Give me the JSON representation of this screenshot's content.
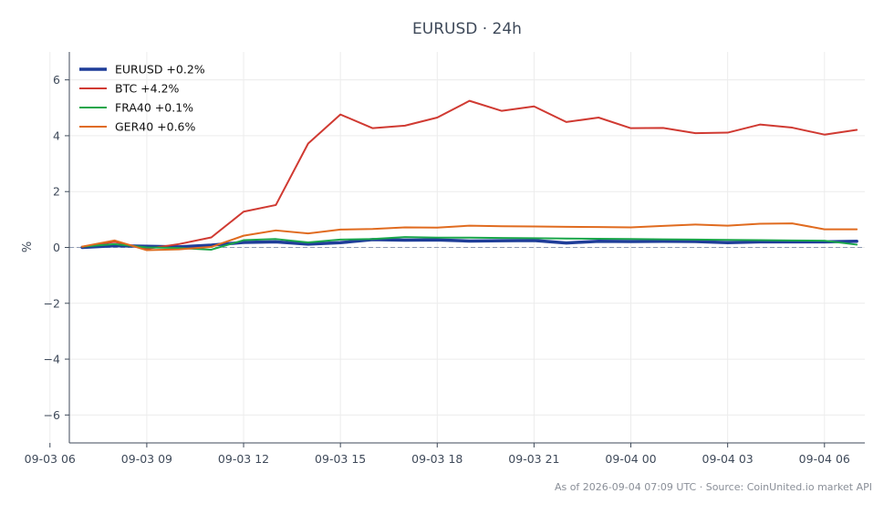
{
  "chart_data": {
    "type": "line",
    "title": "EURUSD · 24h",
    "ylabel": "%",
    "xlabel": "",
    "xlim": [
      6.6,
      31.25
    ],
    "ylim": [
      -7,
      7
    ],
    "x_tick_values": [
      6,
      9,
      12,
      15,
      18,
      21,
      24,
      27,
      30
    ],
    "x_tick_labels": [
      "09-03 06",
      "09-03 09",
      "09-03 12",
      "09-03 15",
      "09-03 18",
      "09-03 21",
      "09-04 00",
      "09-04 03",
      "09-04 06"
    ],
    "y_ticks": [
      -6,
      -4,
      -2,
      0,
      2,
      4,
      6
    ],
    "y_tick_labels": [
      "−6",
      "−4",
      "−2",
      "0",
      "2",
      "4",
      "6"
    ],
    "x": [
      7,
      8,
      9,
      10,
      11,
      12,
      13,
      14,
      15,
      16,
      17,
      18,
      19,
      20,
      21,
      22,
      23,
      24,
      25,
      26,
      27,
      28,
      29,
      30,
      31
    ],
    "series": [
      {
        "name": "EURUSD +0.2%",
        "color": "#1f3d99",
        "width": 3.5,
        "values": [
          0.0,
          0.06,
          0.04,
          0.02,
          0.08,
          0.18,
          0.2,
          0.12,
          0.17,
          0.28,
          0.26,
          0.27,
          0.23,
          0.24,
          0.25,
          0.16,
          0.22,
          0.21,
          0.22,
          0.21,
          0.17,
          0.2,
          0.2,
          0.2,
          0.22
        ]
      },
      {
        "name": "BTC +4.2%",
        "color": "#d03a32",
        "width": 2,
        "values": [
          0.02,
          0.2,
          -0.05,
          0.12,
          0.36,
          1.28,
          1.52,
          3.72,
          4.76,
          4.27,
          4.36,
          4.65,
          5.25,
          4.89,
          5.05,
          4.49,
          4.65,
          4.27,
          4.28,
          4.09,
          4.11,
          4.4,
          4.29,
          4.04,
          4.21
        ]
      },
      {
        "name": "FRA40 +0.1%",
        "color": "#1aa64a",
        "width": 2,
        "values": [
          0.03,
          0.12,
          0.0,
          -0.02,
          -0.08,
          0.26,
          0.3,
          0.18,
          0.28,
          0.3,
          0.37,
          0.35,
          0.35,
          0.34,
          0.33,
          0.32,
          0.31,
          0.3,
          0.29,
          0.28,
          0.27,
          0.26,
          0.25,
          0.24,
          0.1
        ]
      },
      {
        "name": "GER40 +0.6%",
        "color": "#e06b1f",
        "width": 2,
        "values": [
          0.03,
          0.25,
          -0.1,
          -0.07,
          0.02,
          0.42,
          0.61,
          0.5,
          0.64,
          0.66,
          0.72,
          0.71,
          0.78,
          0.76,
          0.75,
          0.74,
          0.73,
          0.72,
          0.77,
          0.82,
          0.78,
          0.85,
          0.86,
          0.65,
          0.65
        ]
      }
    ],
    "zero_line": true,
    "grid": true,
    "legend_position": "top-left"
  },
  "footer": {
    "source_text": "As of 2026-09-04 07:09 UTC · Source: CoinUnited.io market API"
  }
}
